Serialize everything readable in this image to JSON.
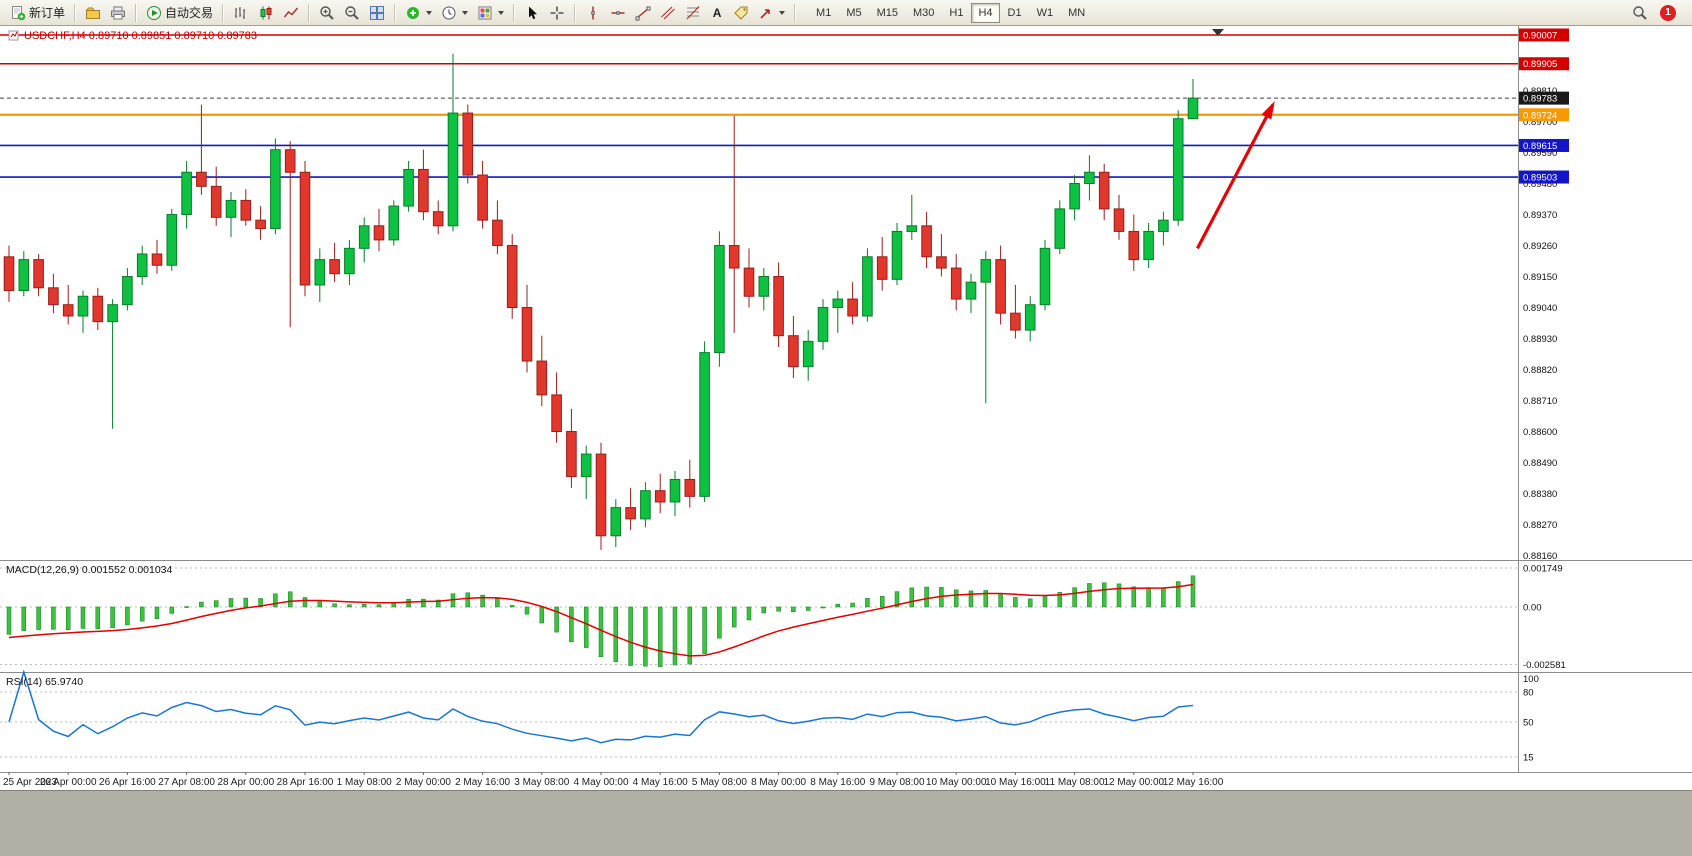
{
  "app": {
    "toolbar": {
      "new_order_label": "新订单",
      "auto_trading_label": "自动交易",
      "text_tool_glyph": "A",
      "timeframes": [
        "M1",
        "M5",
        "M15",
        "M30",
        "H1",
        "H4",
        "D1",
        "W1",
        "MN"
      ],
      "active_timeframe": "H4",
      "notification_count": "1"
    }
  },
  "chart": {
    "title_left": "USDCHF,H4",
    "title_ohlc": "0.89710 0.89851 0.89710 0.89783"
  },
  "colors": {
    "up_fill": "#0fc143",
    "up_border": "#067d28",
    "down_fill": "#e2372c",
    "down_border": "#96201a",
    "macd_bar": "#3ec13e",
    "macd_bar_border": "#0f7d20",
    "macd_signal": "#e00000",
    "rsi_line": "#1a75d2",
    "current_badge": "#1a1a1a",
    "axis_text": "#111111",
    "title_text": "#c00000"
  },
  "chart_data": {
    "type": "candlestick",
    "symbol": "USDCHF",
    "timeframe": "H4",
    "x_labels": [
      "25 Apr 2023",
      "26 Apr 00:00",
      "26 Apr 16:00",
      "27 Apr 08:00",
      "28 Apr 00:00",
      "28 Apr 16:00",
      "1 May 08:00",
      "2 May 00:00",
      "2 May 16:00",
      "3 May 08:00",
      "4 May 00:00",
      "4 May 16:00",
      "5 May 08:00",
      "8 May 00:00",
      "8 May 16:00",
      "9 May 08:00",
      "10 May 00:00",
      "10 May 16:00",
      "11 May 08:00",
      "12 May 00:00",
      "12 May 16:00"
    ],
    "label_every_n_candles": 4,
    "candles": [
      [
        0.8922,
        0.8926,
        0.8906,
        0.891
      ],
      [
        0.891,
        0.8924,
        0.8908,
        0.8921
      ],
      [
        0.8921,
        0.8923,
        0.8908,
        0.8911
      ],
      [
        0.8911,
        0.8916,
        0.8902,
        0.8905
      ],
      [
        0.8905,
        0.8912,
        0.8898,
        0.8901
      ],
      [
        0.8901,
        0.891,
        0.8895,
        0.8908
      ],
      [
        0.8908,
        0.8911,
        0.8896,
        0.8899
      ],
      [
        0.8899,
        0.8907,
        0.8861,
        0.8905
      ],
      [
        0.8905,
        0.8918,
        0.8903,
        0.8915
      ],
      [
        0.8915,
        0.8926,
        0.8912,
        0.8923
      ],
      [
        0.8923,
        0.8928,
        0.8916,
        0.8919
      ],
      [
        0.8919,
        0.8939,
        0.8917,
        0.8937
      ],
      [
        0.8937,
        0.8956,
        0.8932,
        0.8952
      ],
      [
        0.8952,
        0.8976,
        0.8944,
        0.8947
      ],
      [
        0.8947,
        0.8954,
        0.8933,
        0.8936
      ],
      [
        0.8936,
        0.8945,
        0.8929,
        0.8942
      ],
      [
        0.8942,
        0.8946,
        0.8933,
        0.8935
      ],
      [
        0.8935,
        0.894,
        0.8928,
        0.8932
      ],
      [
        0.8932,
        0.8964,
        0.893,
        0.896
      ],
      [
        0.896,
        0.8963,
        0.8897,
        0.8952
      ],
      [
        0.8952,
        0.8956,
        0.8908,
        0.8912
      ],
      [
        0.8912,
        0.8925,
        0.8906,
        0.8921
      ],
      [
        0.8921,
        0.8927,
        0.8913,
        0.8916
      ],
      [
        0.8916,
        0.8928,
        0.8912,
        0.8925
      ],
      [
        0.8925,
        0.8936,
        0.892,
        0.8933
      ],
      [
        0.8933,
        0.8939,
        0.8924,
        0.8928
      ],
      [
        0.8928,
        0.8942,
        0.8926,
        0.894
      ],
      [
        0.894,
        0.8956,
        0.8938,
        0.8953
      ],
      [
        0.8953,
        0.896,
        0.8935,
        0.8938
      ],
      [
        0.8938,
        0.8942,
        0.893,
        0.8933
      ],
      [
        0.8933,
        0.8994,
        0.8931,
        0.8973
      ],
      [
        0.8973,
        0.8976,
        0.8948,
        0.8951
      ],
      [
        0.8951,
        0.8956,
        0.8932,
        0.8935
      ],
      [
        0.8935,
        0.8942,
        0.8923,
        0.8926
      ],
      [
        0.8926,
        0.893,
        0.89,
        0.8904
      ],
      [
        0.8904,
        0.8912,
        0.8881,
        0.8885
      ],
      [
        0.8885,
        0.8894,
        0.8869,
        0.8873
      ],
      [
        0.8873,
        0.8881,
        0.8856,
        0.886
      ],
      [
        0.886,
        0.8868,
        0.884,
        0.8844
      ],
      [
        0.8844,
        0.8855,
        0.8836,
        0.8852
      ],
      [
        0.8852,
        0.8856,
        0.8818,
        0.8823
      ],
      [
        0.8823,
        0.8836,
        0.8819,
        0.8833
      ],
      [
        0.8833,
        0.884,
        0.8825,
        0.8829
      ],
      [
        0.8829,
        0.8842,
        0.8826,
        0.8839
      ],
      [
        0.8839,
        0.8845,
        0.8831,
        0.8835
      ],
      [
        0.8835,
        0.8846,
        0.883,
        0.8843
      ],
      [
        0.8843,
        0.885,
        0.8833,
        0.8837
      ],
      [
        0.8837,
        0.8892,
        0.8835,
        0.8888
      ],
      [
        0.8888,
        0.8931,
        0.8883,
        0.8926
      ],
      [
        0.8926,
        0.8972,
        0.8895,
        0.8918
      ],
      [
        0.8918,
        0.8925,
        0.8904,
        0.8908
      ],
      [
        0.8908,
        0.8918,
        0.8903,
        0.8915
      ],
      [
        0.8915,
        0.892,
        0.889,
        0.8894
      ],
      [
        0.8894,
        0.8901,
        0.8879,
        0.8883
      ],
      [
        0.8883,
        0.8896,
        0.8878,
        0.8892
      ],
      [
        0.8892,
        0.8907,
        0.8889,
        0.8904
      ],
      [
        0.8904,
        0.891,
        0.8895,
        0.8907
      ],
      [
        0.8907,
        0.8913,
        0.8898,
        0.8901
      ],
      [
        0.8901,
        0.8925,
        0.8899,
        0.8922
      ],
      [
        0.8922,
        0.8929,
        0.891,
        0.8914
      ],
      [
        0.8914,
        0.8934,
        0.8912,
        0.8931
      ],
      [
        0.8931,
        0.8944,
        0.8928,
        0.8933
      ],
      [
        0.8933,
        0.8938,
        0.8918,
        0.8922
      ],
      [
        0.8922,
        0.893,
        0.8915,
        0.8918
      ],
      [
        0.8918,
        0.8923,
        0.8903,
        0.8907
      ],
      [
        0.8907,
        0.8916,
        0.8902,
        0.8913
      ],
      [
        0.8913,
        0.8924,
        0.887,
        0.8921
      ],
      [
        0.8921,
        0.8926,
        0.8898,
        0.8902
      ],
      [
        0.8902,
        0.8912,
        0.8893,
        0.8896
      ],
      [
        0.8896,
        0.8908,
        0.8892,
        0.8905
      ],
      [
        0.8905,
        0.8928,
        0.8903,
        0.8925
      ],
      [
        0.8925,
        0.8942,
        0.8923,
        0.8939
      ],
      [
        0.8939,
        0.8951,
        0.8935,
        0.8948
      ],
      [
        0.8948,
        0.8958,
        0.8942,
        0.8952
      ],
      [
        0.8952,
        0.8955,
        0.8935,
        0.8939
      ],
      [
        0.8939,
        0.8944,
        0.8928,
        0.8931
      ],
      [
        0.8931,
        0.8937,
        0.8917,
        0.8921
      ],
      [
        0.8921,
        0.8934,
        0.8918,
        0.8931
      ],
      [
        0.8931,
        0.8938,
        0.8926,
        0.8935
      ],
      [
        0.8935,
        0.8974,
        0.8933,
        0.8971
      ],
      [
        0.8971,
        0.89851,
        0.8971,
        0.89783
      ]
    ],
    "price_axis_ticks": [
      "0.89810",
      "0.89700",
      "0.89590",
      "0.89480",
      "0.89370",
      "0.89260",
      "0.89150",
      "0.89040",
      "0.88930",
      "0.88820",
      "0.88710",
      "0.88600",
      "0.88490",
      "0.88380",
      "0.88270",
      "0.88160"
    ],
    "levels": [
      {
        "label": "0.90007",
        "color": "#d40000",
        "width": 1.6
      },
      {
        "label": "0.89905",
        "color": "#d40000",
        "width": 1.6
      },
      {
        "label": "0.89724",
        "color": "#f59a00",
        "width": 2.2
      },
      {
        "label": "0.89615",
        "color": "#1414c8",
        "width": 1.6
      },
      {
        "label": "0.89503",
        "color": "#1414c8",
        "width": 1.6
      }
    ],
    "current_price": "0.89783",
    "indicators": {
      "macd": {
        "label": "MACD(12,26,9) 0.001552 0.001034",
        "params": [
          12,
          26,
          9
        ],
        "scale": [
          "0.001749",
          "0.00",
          "-0.002581"
        ]
      },
      "rsi": {
        "label": "RSI(14) 65.9740",
        "period": 14,
        "scale": [
          "100",
          "80",
          "50",
          "15"
        ],
        "levels": [
          80,
          50,
          15
        ]
      }
    },
    "arrow": {
      "from": [
        80.3,
        0.8925
      ],
      "to": [
        85.4,
        0.8976
      ],
      "color": "#e60000"
    }
  }
}
